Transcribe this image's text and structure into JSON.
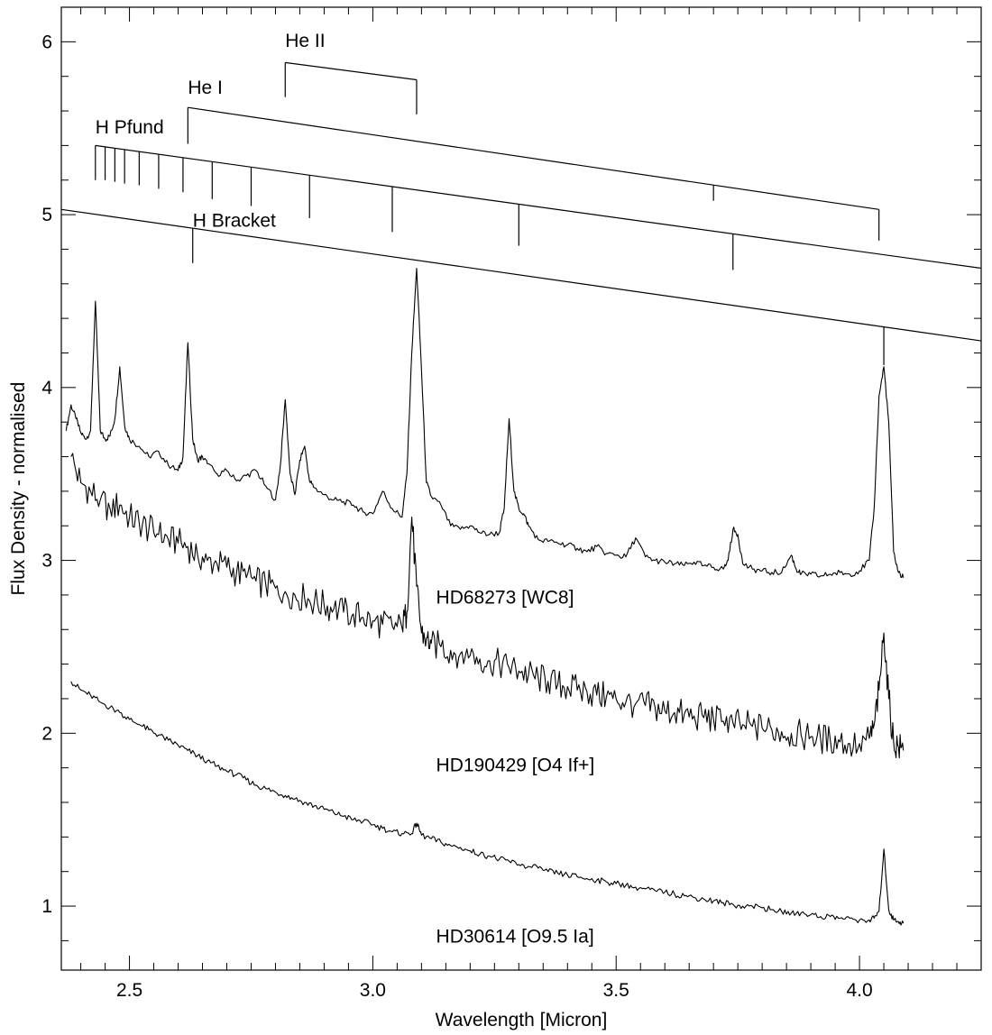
{
  "chart_data": {
    "type": "line",
    "title": "",
    "xlabel": "Wavelength [Micron]",
    "ylabel": "Flux Density - normalised",
    "xlim": [
      2.36,
      4.25
    ],
    "ylim": [
      0.63,
      6.2
    ],
    "xticks": [
      2.5,
      3.0,
      3.5,
      4.0
    ],
    "xtick_labels": [
      "2.5",
      "3.0",
      "3.5",
      "4.0"
    ],
    "yticks": [
      1,
      2,
      3,
      4,
      5,
      6
    ],
    "ytick_labels": [
      "1",
      "2",
      "3",
      "4",
      "5",
      "6"
    ],
    "x_minor_step": 0.05,
    "y_minor_step": 0.2,
    "grid": false,
    "legend": "none",
    "series": [
      {
        "name": "HD68273 [WC8]",
        "label_at": [
          3.13,
          2.75
        ],
        "x": [
          2.37,
          2.38,
          2.39,
          2.4,
          2.41,
          2.42,
          2.43,
          2.44,
          2.45,
          2.46,
          2.47,
          2.48,
          2.49,
          2.5,
          2.52,
          2.54,
          2.56,
          2.58,
          2.6,
          2.61,
          2.62,
          2.63,
          2.64,
          2.65,
          2.66,
          2.68,
          2.7,
          2.72,
          2.74,
          2.76,
          2.78,
          2.8,
          2.81,
          2.82,
          2.83,
          2.84,
          2.85,
          2.86,
          2.87,
          2.88,
          2.9,
          2.92,
          2.94,
          2.96,
          2.98,
          3.0,
          3.02,
          3.04,
          3.06,
          3.07,
          3.08,
          3.09,
          3.1,
          3.11,
          3.12,
          3.14,
          3.16,
          3.18,
          3.2,
          3.22,
          3.24,
          3.26,
          3.27,
          3.28,
          3.29,
          3.3,
          3.31,
          3.32,
          3.34,
          3.36,
          3.38,
          3.4,
          3.42,
          3.44,
          3.46,
          3.48,
          3.5,
          3.52,
          3.54,
          3.56,
          3.58,
          3.6,
          3.62,
          3.64,
          3.66,
          3.68,
          3.7,
          3.72,
          3.73,
          3.74,
          3.75,
          3.76,
          3.78,
          3.8,
          3.82,
          3.84,
          3.86,
          3.87,
          3.88,
          3.9,
          3.92,
          3.94,
          3.96,
          3.98,
          4.0,
          4.02,
          4.03,
          4.04,
          4.05,
          4.06,
          4.07,
          4.08,
          4.09
        ],
        "y": [
          3.75,
          3.9,
          3.82,
          3.74,
          3.7,
          3.75,
          4.5,
          3.75,
          3.7,
          3.72,
          3.82,
          4.12,
          3.78,
          3.7,
          3.66,
          3.6,
          3.63,
          3.55,
          3.52,
          3.6,
          4.26,
          3.7,
          3.58,
          3.6,
          3.56,
          3.5,
          3.52,
          3.46,
          3.49,
          3.52,
          3.43,
          3.35,
          3.55,
          3.93,
          3.5,
          3.38,
          3.58,
          3.66,
          3.46,
          3.42,
          3.38,
          3.35,
          3.34,
          3.32,
          3.28,
          3.27,
          3.4,
          3.3,
          3.25,
          3.5,
          4.2,
          4.69,
          4.1,
          3.45,
          3.37,
          3.32,
          3.2,
          3.18,
          3.2,
          3.16,
          3.15,
          3.16,
          3.3,
          3.82,
          3.4,
          3.3,
          3.27,
          3.2,
          3.12,
          3.11,
          3.1,
          3.09,
          3.07,
          3.05,
          3.08,
          3.04,
          3.03,
          3.02,
          3.13,
          3.02,
          3.0,
          2.99,
          2.98,
          2.97,
          2.99,
          2.97,
          2.96,
          2.95,
          3.0,
          3.18,
          3.15,
          2.98,
          2.95,
          2.94,
          2.93,
          2.93,
          3.03,
          2.95,
          2.92,
          2.92,
          2.91,
          2.92,
          2.93,
          2.92,
          2.94,
          3.0,
          3.3,
          3.95,
          4.12,
          3.8,
          3.05,
          2.93,
          2.9
        ]
      },
      {
        "name": "HD190429 [O4 If+]",
        "label_at": [
          3.13,
          1.78
        ],
        "x": [
          2.38,
          2.4,
          2.42,
          2.44,
          2.46,
          2.48,
          2.5,
          2.52,
          2.54,
          2.56,
          2.58,
          2.6,
          2.62,
          2.64,
          2.66,
          2.68,
          2.7,
          2.72,
          2.74,
          2.76,
          2.78,
          2.8,
          2.82,
          2.84,
          2.86,
          2.88,
          2.9,
          2.92,
          2.94,
          2.96,
          2.98,
          3.0,
          3.02,
          3.04,
          3.06,
          3.07,
          3.08,
          3.09,
          3.1,
          3.11,
          3.12,
          3.14,
          3.16,
          3.18,
          3.2,
          3.22,
          3.24,
          3.26,
          3.28,
          3.3,
          3.32,
          3.34,
          3.36,
          3.38,
          3.4,
          3.42,
          3.44,
          3.46,
          3.48,
          3.5,
          3.52,
          3.54,
          3.56,
          3.58,
          3.6,
          3.62,
          3.64,
          3.66,
          3.68,
          3.7,
          3.72,
          3.74,
          3.76,
          3.78,
          3.8,
          3.82,
          3.84,
          3.86,
          3.88,
          3.9,
          3.92,
          3.94,
          3.96,
          3.98,
          4.0,
          4.02,
          4.03,
          4.04,
          4.05,
          4.06,
          4.07,
          4.08,
          4.09
        ],
        "y": [
          3.6,
          3.45,
          3.4,
          3.35,
          3.3,
          3.32,
          3.25,
          3.22,
          3.18,
          3.15,
          3.12,
          3.1,
          3.08,
          3.03,
          3.0,
          2.98,
          2.96,
          2.93,
          2.9,
          2.88,
          2.86,
          2.84,
          2.82,
          2.8,
          2.78,
          2.76,
          2.74,
          2.72,
          2.7,
          2.69,
          2.67,
          2.65,
          2.63,
          2.62,
          2.61,
          2.7,
          3.25,
          2.85,
          2.58,
          2.55,
          2.52,
          2.5,
          2.48,
          2.46,
          2.45,
          2.43,
          2.42,
          2.4,
          2.38,
          2.36,
          2.34,
          2.32,
          2.3,
          2.28,
          2.27,
          2.25,
          2.24,
          2.22,
          2.21,
          2.2,
          2.18,
          2.17,
          2.16,
          2.15,
          2.13,
          2.12,
          2.11,
          2.1,
          2.09,
          2.08,
          2.07,
          2.06,
          2.05,
          2.04,
          2.03,
          2.02,
          2.01,
          2.0,
          1.99,
          1.98,
          1.97,
          1.96,
          1.95,
          1.94,
          1.94,
          1.97,
          2.05,
          2.25,
          2.58,
          2.2,
          1.95,
          1.92,
          1.9
        ]
      },
      {
        "name": "HD30614 [O9.5 Ia]",
        "label_at": [
          3.13,
          0.79
        ],
        "x": [
          2.38,
          2.4,
          2.42,
          2.44,
          2.46,
          2.48,
          2.5,
          2.52,
          2.54,
          2.56,
          2.58,
          2.6,
          2.62,
          2.64,
          2.66,
          2.68,
          2.7,
          2.72,
          2.74,
          2.76,
          2.78,
          2.8,
          2.82,
          2.84,
          2.86,
          2.88,
          2.9,
          2.92,
          2.94,
          2.96,
          2.98,
          3.0,
          3.02,
          3.04,
          3.06,
          3.08,
          3.09,
          3.1,
          3.12,
          3.14,
          3.16,
          3.18,
          3.2,
          3.22,
          3.24,
          3.26,
          3.28,
          3.3,
          3.32,
          3.34,
          3.36,
          3.38,
          3.4,
          3.42,
          3.44,
          3.46,
          3.48,
          3.5,
          3.52,
          3.54,
          3.56,
          3.58,
          3.6,
          3.62,
          3.64,
          3.66,
          3.68,
          3.7,
          3.72,
          3.74,
          3.76,
          3.78,
          3.8,
          3.82,
          3.84,
          3.86,
          3.88,
          3.9,
          3.92,
          3.94,
          3.96,
          3.98,
          4.0,
          4.02,
          4.03,
          4.04,
          4.05,
          4.06,
          4.07,
          4.08,
          4.09
        ],
        "y": [
          2.3,
          2.25,
          2.22,
          2.18,
          2.15,
          2.12,
          2.08,
          2.05,
          2.02,
          1.99,
          1.96,
          1.93,
          1.9,
          1.87,
          1.84,
          1.81,
          1.78,
          1.76,
          1.73,
          1.7,
          1.68,
          1.66,
          1.64,
          1.62,
          1.6,
          1.58,
          1.56,
          1.54,
          1.52,
          1.5,
          1.49,
          1.47,
          1.45,
          1.43,
          1.42,
          1.42,
          1.48,
          1.41,
          1.39,
          1.37,
          1.35,
          1.34,
          1.32,
          1.3,
          1.29,
          1.27,
          1.26,
          1.24,
          1.23,
          1.22,
          1.2,
          1.19,
          1.18,
          1.17,
          1.16,
          1.15,
          1.14,
          1.13,
          1.12,
          1.11,
          1.1,
          1.09,
          1.08,
          1.07,
          1.06,
          1.05,
          1.04,
          1.03,
          1.02,
          1.01,
          1.0,
          1.0,
          0.99,
          0.98,
          0.97,
          0.96,
          0.96,
          0.95,
          0.94,
          0.94,
          0.93,
          0.93,
          0.92,
          0.92,
          0.93,
          0.97,
          1.33,
          0.98,
          0.92,
          0.91,
          0.9
        ]
      }
    ],
    "line_ladders": [
      {
        "name": "He II",
        "baseline": [
          [
            2.82,
            5.88
          ],
          [
            3.09,
            5.78
          ]
        ],
        "ticks": [
          [
            2.82,
            5.68
          ],
          [
            3.09,
            5.58
          ]
        ],
        "label_at": [
          2.82,
          5.97
        ]
      },
      {
        "name": "He I",
        "baseline": [
          [
            2.62,
            5.62
          ],
          [
            4.04,
            5.03
          ]
        ],
        "ticks": [
          [
            2.62,
            5.41
          ],
          [
            3.7,
            5.08
          ],
          [
            4.04,
            4.85
          ]
        ],
        "label_at": [
          2.62,
          5.7
        ]
      },
      {
        "name": "H Pfund",
        "baseline": [
          [
            2.43,
            5.4
          ],
          [
            4.25,
            4.69
          ]
        ],
        "ticks": [
          [
            2.43,
            5.2
          ],
          [
            2.45,
            5.2
          ],
          [
            2.47,
            5.19
          ],
          [
            2.49,
            5.18
          ],
          [
            2.52,
            5.17
          ],
          [
            2.56,
            5.15
          ],
          [
            2.61,
            5.13
          ],
          [
            2.67,
            5.09
          ],
          [
            2.75,
            5.05
          ],
          [
            2.87,
            4.98
          ],
          [
            3.04,
            4.9
          ],
          [
            3.3,
            4.82
          ],
          [
            3.74,
            4.68
          ]
        ],
        "label_at": [
          2.43,
          5.47
        ]
      },
      {
        "name": "H Bracket",
        "baseline": [
          [
            2.36,
            5.03
          ],
          [
            4.25,
            4.27
          ]
        ],
        "ticks": [
          [
            2.63,
            4.72
          ],
          [
            4.05,
            4.13
          ]
        ],
        "label_at": [
          2.63,
          4.93
        ]
      }
    ]
  }
}
